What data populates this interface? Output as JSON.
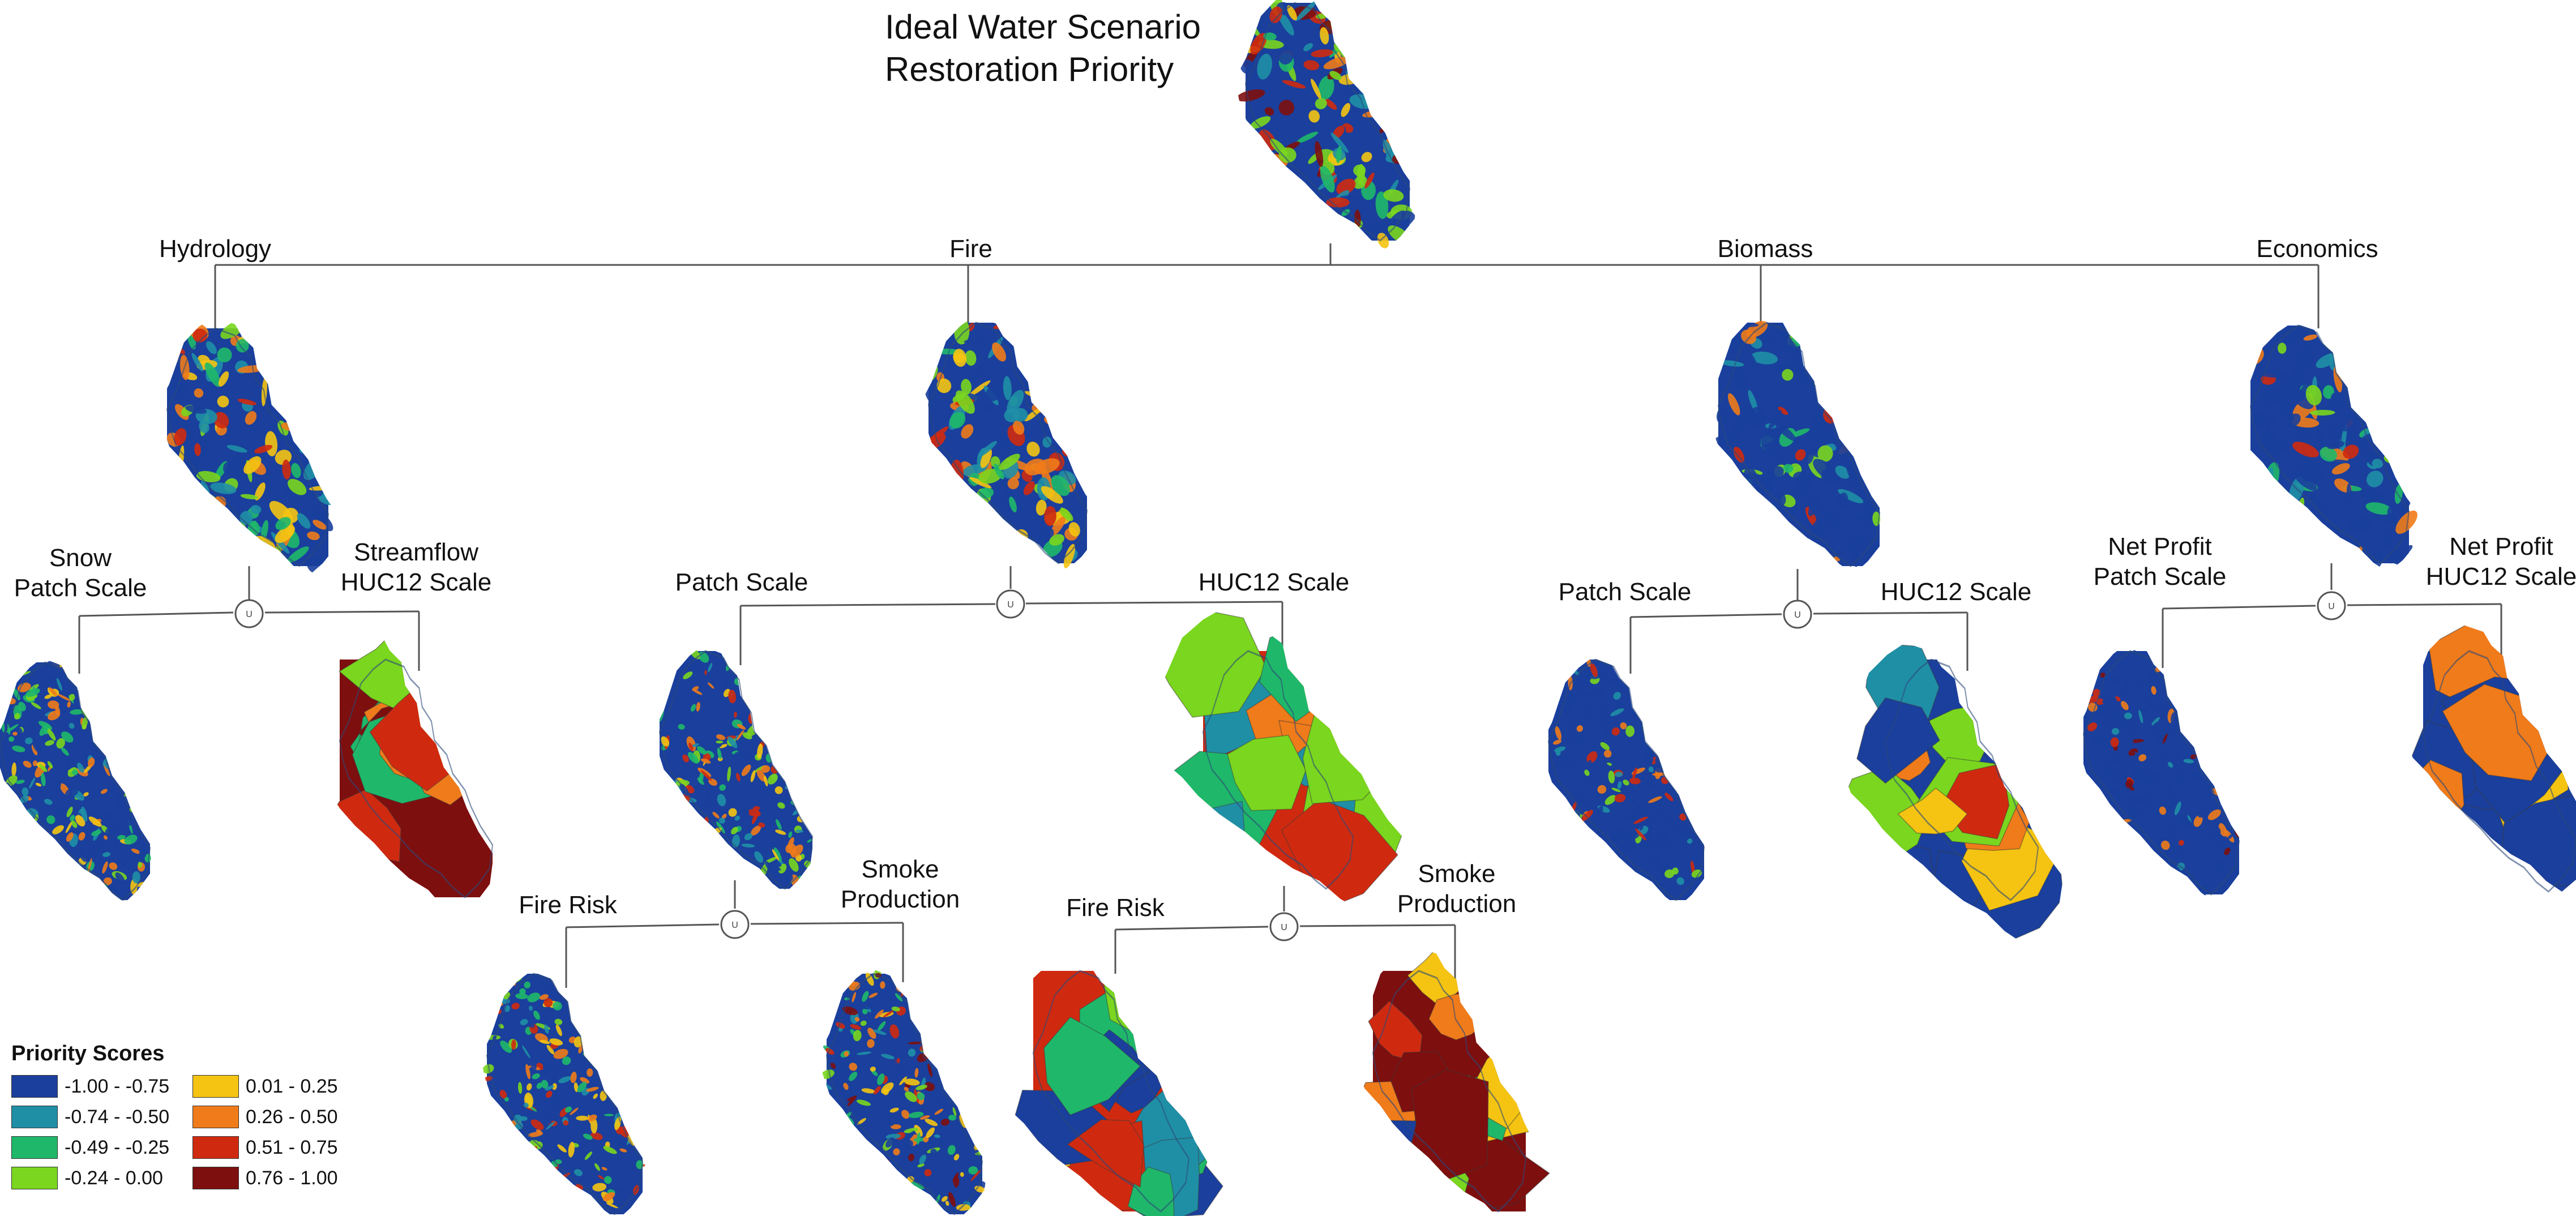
{
  "title": {
    "line1": "Ideal Water Scenario",
    "line2": "Restoration Priority"
  },
  "tree_labels": {
    "hydrology": "Hydrology",
    "fire": "Fire",
    "biomass": "Biomass",
    "economics": "Economics",
    "hydro_left": [
      "Snow",
      "Patch Scale"
    ],
    "hydro_right": [
      "Streamflow",
      "HUC12 Scale"
    ],
    "fire_left": "Patch Scale",
    "fire_right": "HUC12 Scale",
    "fire_patch_left": "Fire Risk",
    "fire_patch_right": [
      "Smoke",
      "Production"
    ],
    "fire_huc_left": "Fire Risk",
    "fire_huc_right": [
      "Smoke",
      "Production"
    ],
    "biomass_left": "Patch Scale",
    "biomass_right": "HUC12 Scale",
    "econ_left": [
      "Net Profit",
      "Patch Scale"
    ],
    "econ_right": [
      "Net Profit",
      "HUC12 Scale"
    ]
  },
  "union_symbol": "U",
  "legend": {
    "title": "Priority Scores",
    "items": [
      {
        "label": "-1.00 - -0.75",
        "color": "#1a3f9c"
      },
      {
        "label": "0.01 - 0.25",
        "color": "#f5c412"
      },
      {
        "label": "-0.74 - -0.50",
        "color": "#1f8fa6"
      },
      {
        "label": "0.26 - 0.50",
        "color": "#f07b1a"
      },
      {
        "label": "-0.49 - -0.25",
        "color": "#1fb86a"
      },
      {
        "label": "0.51 - 0.75",
        "color": "#cf2a10"
      },
      {
        "label": "-0.24 - 0.00",
        "color": "#7ad61e"
      },
      {
        "label": "0.76 - 1.00",
        "color": "#7d0f0f"
      }
    ]
  },
  "maps": [
    {
      "id": "overall",
      "style": "mixed-balanced",
      "palette": [
        "#1a3f9c",
        "#1f8fa6",
        "#1fb86a",
        "#7ad61e",
        "#f5c412",
        "#f07b1a",
        "#cf2a10",
        "#7d0f0f"
      ]
    },
    {
      "id": "hydrology",
      "style": "mixed-warm",
      "palette": [
        "#1a3f9c",
        "#1f8fa6",
        "#1fb86a",
        "#7ad61e",
        "#f5c412",
        "#f07b1a",
        "#cf2a10"
      ]
    },
    {
      "id": "fire",
      "style": "mixed-balanced",
      "palette": [
        "#1a3f9c",
        "#1f8fa6",
        "#1fb86a",
        "#7ad61e",
        "#f5c412",
        "#f07b1a",
        "#cf2a10"
      ]
    },
    {
      "id": "biomass",
      "style": "mostly-blue",
      "palette": [
        "#1a3f9c",
        "#1f8fa6",
        "#1fb86a",
        "#7ad61e",
        "#f07b1a",
        "#cf2a10"
      ]
    },
    {
      "id": "economics",
      "style": "mostly-blue",
      "palette": [
        "#1a3f9c",
        "#1f8fa6",
        "#1fb86a",
        "#7ad61e",
        "#f07b1a",
        "#cf2a10"
      ]
    },
    {
      "id": "hydro-snow-patch",
      "style": "fine-mixed",
      "palette": [
        "#1a3f9c",
        "#1f8fa6",
        "#1fb86a",
        "#7ad61e",
        "#f5c412",
        "#f07b1a"
      ]
    },
    {
      "id": "hydro-streamflow-huc12",
      "style": "polygons",
      "palette": [
        "#7d0f0f",
        "#cf2a10",
        "#f07b1a",
        "#f5c412",
        "#7ad61e",
        "#1fb86a",
        "#1f8fa6",
        "#1a3f9c"
      ]
    },
    {
      "id": "fire-patch",
      "style": "fine-mixed",
      "palette": [
        "#1a3f9c",
        "#1f8fa6",
        "#1fb86a",
        "#7ad61e",
        "#f5c412",
        "#f07b1a",
        "#cf2a10"
      ]
    },
    {
      "id": "fire-huc12",
      "style": "polygons",
      "palette": [
        "#cf2a10",
        "#f07b1a",
        "#f5c412",
        "#7ad61e",
        "#1fb86a",
        "#1f8fa6",
        "#1a3f9c"
      ]
    },
    {
      "id": "biomass-patch",
      "style": "fine-blue",
      "palette": [
        "#1a3f9c",
        "#1a3f9c",
        "#1f8fa6",
        "#7ad61e",
        "#f07b1a",
        "#cf2a10"
      ]
    },
    {
      "id": "biomass-huc12",
      "style": "polygons-blue",
      "palette": [
        "#1a3f9c",
        "#1f8fa6",
        "#f5c412",
        "#f07b1a",
        "#cf2a10",
        "#7d0f0f",
        "#7ad61e"
      ]
    },
    {
      "id": "econ-patch",
      "style": "fine-blue",
      "palette": [
        "#1a3f9c",
        "#1a3f9c",
        "#1f8fa6",
        "#f07b1a",
        "#cf2a10",
        "#7d0f0f"
      ]
    },
    {
      "id": "econ-huc12",
      "style": "polygons-blue",
      "palette": [
        "#1a3f9c",
        "#1f8fa6",
        "#1fb86a",
        "#f5c412",
        "#f07b1a",
        "#cf2a10",
        "#7d0f0f"
      ]
    },
    {
      "id": "fire-patch-firerisk",
      "style": "fine-mixed",
      "palette": [
        "#1a3f9c",
        "#1f8fa6",
        "#1fb86a",
        "#7ad61e",
        "#f5c412",
        "#f07b1a",
        "#cf2a10"
      ]
    },
    {
      "id": "fire-patch-smoke",
      "style": "fine-mixed",
      "palette": [
        "#1a3f9c",
        "#1f8fa6",
        "#1fb86a",
        "#7ad61e",
        "#f5c412",
        "#f07b1a",
        "#cf2a10",
        "#7d0f0f"
      ]
    },
    {
      "id": "fire-huc-firerisk",
      "style": "polygons",
      "palette": [
        "#cf2a10",
        "#f07b1a",
        "#f5c412",
        "#7ad61e",
        "#1fb86a",
        "#1f8fa6",
        "#1a3f9c"
      ]
    },
    {
      "id": "fire-huc-smoke",
      "style": "polygons",
      "palette": [
        "#7d0f0f",
        "#cf2a10",
        "#f07b1a",
        "#f5c412",
        "#7ad61e",
        "#1fb86a",
        "#1a3f9c"
      ]
    }
  ]
}
